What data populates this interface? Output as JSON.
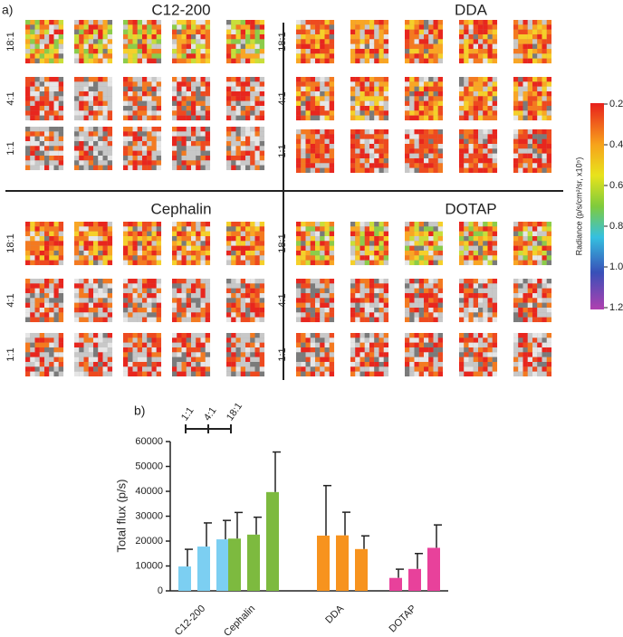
{
  "panel_a": {
    "label": "a)",
    "groups": [
      {
        "title": "C12-200",
        "rows": [
          "18:1",
          "4:1",
          "1:1"
        ]
      },
      {
        "title": "DDA",
        "rows": [
          "18:1",
          "4:1",
          "1:1"
        ]
      },
      {
        "title": "Cephalin",
        "rows": [
          "18:1",
          "4:1",
          "1:1"
        ]
      },
      {
        "title": "DOTAP",
        "rows": [
          "18:1",
          "4:1",
          "1:1"
        ]
      }
    ],
    "colorbar": {
      "label": "Radiance (p/s/cm²/sr, x10⁵)",
      "ylim": [
        0.2,
        1.2
      ],
      "ticks": [
        0.2,
        0.4,
        0.6,
        0.8,
        {
          "value": 1,
          "label": "1.0"
        },
        1.2
      ]
    }
  },
  "panel_b_label": "b)",
  "chart_data": {
    "type": "bar",
    "ylabel": "Total flux (p/s)",
    "categories": [
      "C12-200",
      "Cephalin",
      "DDA",
      "DOTAP"
    ],
    "category_colors": [
      "#7ccff2",
      "#7dba3f",
      "#f7931e",
      "#e8419b"
    ],
    "series": [
      {
        "name": "1:1",
        "values": [
          9800,
          21000,
          22200,
          5200
        ],
        "errors": [
          6900,
          10500,
          20100,
          3500
        ]
      },
      {
        "name": "4:1",
        "values": [
          17800,
          22600,
          22300,
          8800
        ],
        "errors": [
          9500,
          7000,
          9300,
          6200
        ]
      },
      {
        "name": "18:1",
        "values": [
          20700,
          39700,
          16800,
          17300
        ],
        "errors": [
          7600,
          16100,
          5300,
          9200
        ]
      }
    ],
    "ylim": [
      0,
      60000
    ],
    "yticks": [
      0,
      10000,
      20000,
      30000,
      40000,
      50000,
      60000
    ]
  }
}
